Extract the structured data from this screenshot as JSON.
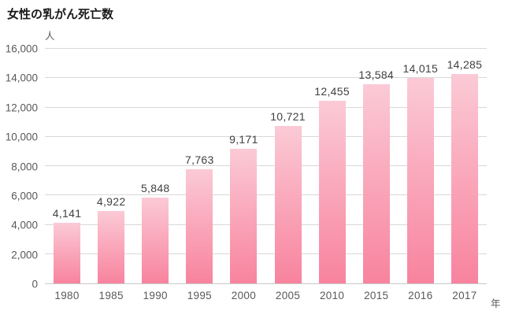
{
  "chart": {
    "title": "女性の乳がん死亡数",
    "y_unit_label": "人",
    "x_unit_label": "年",
    "colors": {
      "bar_gradient_top": "#fbcad6",
      "bar_gradient_bottom": "#f8839e",
      "gridline": "#d9d9d9",
      "axis_line": "#c8c8c8",
      "tick_text": "#595959",
      "data_label_text": "#404040",
      "title_text": "#1a1a1a"
    }
  },
  "chart_data": {
    "type": "bar",
    "title": "女性の乳がん死亡数",
    "categories": [
      "1980",
      "1985",
      "1990",
      "1995",
      "2000",
      "2005",
      "2010",
      "2015",
      "2016",
      "2017"
    ],
    "values": [
      4141,
      4922,
      5848,
      7763,
      9171,
      10721,
      12455,
      13584,
      14015,
      14285
    ],
    "value_labels": [
      "4,141",
      "4,922",
      "5,848",
      "7,763",
      "9,171",
      "10,721",
      "12,455",
      "13,584",
      "14,015",
      "14,285"
    ],
    "xlabel": "年",
    "ylabel": "人",
    "ylim": [
      0,
      16000
    ],
    "y_tick_step": 2000,
    "y_ticks": [
      {
        "value": 0,
        "label": "0"
      },
      {
        "value": 2000,
        "label": "2,000"
      },
      {
        "value": 4000,
        "label": "4,000"
      },
      {
        "value": 6000,
        "label": "6,000"
      },
      {
        "value": 8000,
        "label": "8,000"
      },
      {
        "value": 10000,
        "label": "10,000"
      },
      {
        "value": 12000,
        "label": "12,000"
      },
      {
        "value": 14000,
        "label": "14,000"
      },
      {
        "value": 16000,
        "label": "16,000"
      }
    ],
    "grid": true,
    "legend": false
  }
}
